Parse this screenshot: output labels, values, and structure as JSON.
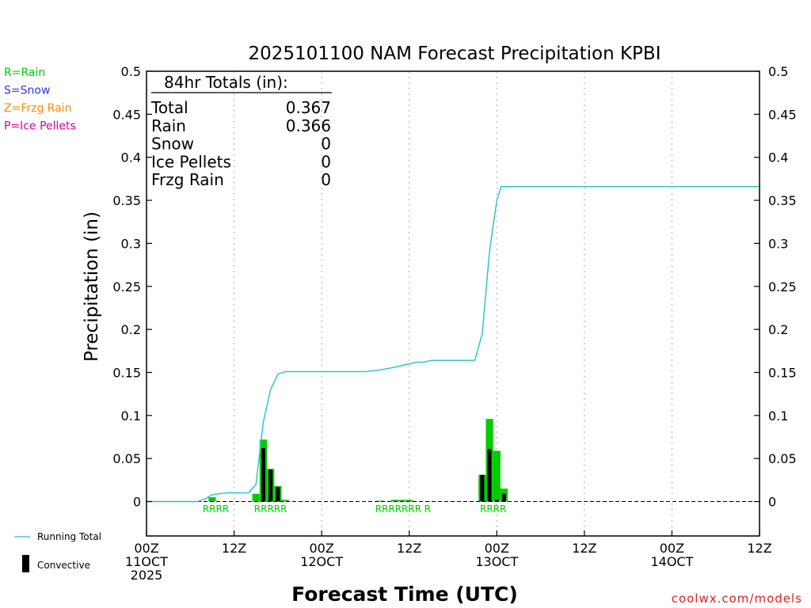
{
  "chart_data": {
    "type": "bar",
    "title": "2025101100 NAM Forecast Precipitation KPBI",
    "xlabel": "Forecast Time (UTC)",
    "ylabel": "Precipitation (in)",
    "ylim": [
      -0.04,
      0.5
    ],
    "xlim_hours": [
      0,
      84
    ],
    "y_ticks": [
      "0",
      "0.05",
      "0.1",
      "0.15",
      "0.2",
      "0.25",
      "0.3",
      "0.35",
      "0.4",
      "0.45",
      "0.5"
    ],
    "x_ticks": [
      {
        "hour": 0,
        "lines": [
          "00Z",
          "11OCT",
          "2025"
        ]
      },
      {
        "hour": 12,
        "lines": [
          "12Z"
        ]
      },
      {
        "hour": 24,
        "lines": [
          "00Z",
          "12OCT"
        ]
      },
      {
        "hour": 36,
        "lines": [
          "12Z"
        ]
      },
      {
        "hour": 48,
        "lines": [
          "00Z",
          "13OCT"
        ]
      },
      {
        "hour": 60,
        "lines": [
          "12Z"
        ]
      },
      {
        "hour": 72,
        "lines": [
          "00Z",
          "14OCT"
        ]
      },
      {
        "hour": 84,
        "lines": [
          "12Z"
        ]
      }
    ],
    "grid_hours": [
      12,
      24,
      36,
      48,
      60,
      72
    ],
    "legend": [
      {
        "label": "R=Rain",
        "color": "#00cc00"
      },
      {
        "label": "S=Snow",
        "color": "#3333ff"
      },
      {
        "label": "Z=Frzg Rain",
        "color": "#ff8800"
      },
      {
        "label": "P=Ice Pellets",
        "color": "#dd0099"
      }
    ],
    "bottom_legend": {
      "running": "Running Total",
      "convective": "Convective"
    },
    "totals": {
      "header": "84hr Totals (in):",
      "rows": [
        {
          "label": "Total",
          "value": "0.367"
        },
        {
          "label": "Rain",
          "value": "0.366"
        },
        {
          "label": "Snow",
          "value": "0"
        },
        {
          "label": "Ice Pellets",
          "value": "0"
        },
        {
          "label": "Frzg Rain",
          "value": "0"
        }
      ]
    },
    "precip_bars": [
      {
        "hour": 9,
        "total": 0.005,
        "convective": 0
      },
      {
        "hour": 15,
        "total": 0.009,
        "convective": 0
      },
      {
        "hour": 16,
        "total": 0.072,
        "convective": 0.062
      },
      {
        "hour": 17,
        "total": 0.038,
        "convective": 0.037
      },
      {
        "hour": 18,
        "total": 0.018,
        "convective": 0.017
      },
      {
        "hour": 19,
        "total": 0.002,
        "convective": 0
      },
      {
        "hour": 32,
        "total": 0.001,
        "convective": 0
      },
      {
        "hour": 34,
        "total": 0.002,
        "convective": 0
      },
      {
        "hour": 35,
        "total": 0.002,
        "convective": 0
      },
      {
        "hour": 36,
        "total": 0.002,
        "convective": 0
      },
      {
        "hour": 46,
        "total": 0.031,
        "convective": 0.031
      },
      {
        "hour": 47,
        "total": 0.096,
        "convective": 0.061
      },
      {
        "hour": 48,
        "total": 0.059,
        "convective": 0.002
      },
      {
        "hour": 49,
        "total": 0.015,
        "convective": 0.009
      }
    ],
    "running_total": [
      [
        0,
        0
      ],
      [
        7,
        0
      ],
      [
        8,
        0.003
      ],
      [
        9,
        0.008
      ],
      [
        10,
        0.009
      ],
      [
        11,
        0.01
      ],
      [
        14,
        0.01
      ],
      [
        15,
        0.02
      ],
      [
        16,
        0.092
      ],
      [
        17,
        0.13
      ],
      [
        18,
        0.148
      ],
      [
        19,
        0.151
      ],
      [
        20,
        0.151
      ],
      [
        30,
        0.151
      ],
      [
        32,
        0.153
      ],
      [
        34,
        0.156
      ],
      [
        36,
        0.16
      ],
      [
        37,
        0.162
      ],
      [
        38,
        0.162
      ],
      [
        39,
        0.164
      ],
      [
        45,
        0.164
      ],
      [
        46,
        0.195
      ],
      [
        47,
        0.291
      ],
      [
        48,
        0.35
      ],
      [
        48.6,
        0.366
      ],
      [
        84,
        0.366
      ]
    ],
    "ptype_labels": [
      {
        "hour": 9.5,
        "text": "RRRR"
      },
      {
        "hour": 17,
        "text": "RRRRR"
      },
      {
        "hour": 34.5,
        "text": "RRRRRRR"
      },
      {
        "hour": 38.5,
        "text": "R"
      },
      {
        "hour": 47.5,
        "text": "RRRR"
      }
    ],
    "colors": {
      "rain": "#00cc00",
      "convective": "#000000",
      "running_total": "#22c4c4",
      "grid": "#aaaaaa",
      "credit": "#dd2222"
    },
    "credit": "coolwx.com/models"
  }
}
